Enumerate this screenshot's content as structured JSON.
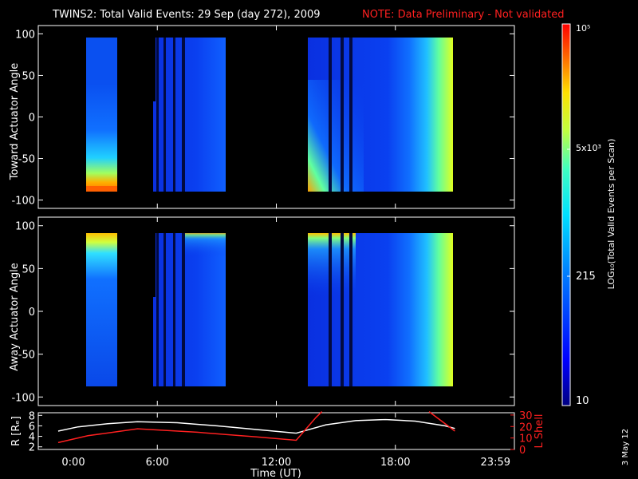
{
  "title": "TWINS2: Total Valid Events: 29 Sep (day 272), 2009",
  "note": "NOTE: Data Preliminary - Not validated",
  "date_stamp": "3 May 12",
  "colors": {
    "note": "#ff2020",
    "ephem_r": "#ffffff",
    "ephem_lshell": "#ff2020"
  },
  "chart_data": [
    {
      "type": "heatmap",
      "ylabel": "Toward Actuator Angle",
      "ylim": [
        -110,
        110
      ],
      "yticks": [
        "100",
        "50",
        "0",
        "-50",
        "-100"
      ],
      "x_range_hours": [
        0,
        24
      ]
    },
    {
      "type": "heatmap",
      "ylabel": "Away Actuator Angle",
      "ylim": [
        -110,
        110
      ],
      "yticks": [
        "100",
        "50",
        "0",
        "-50",
        "-100"
      ],
      "x_range_hours": [
        0,
        24
      ]
    },
    {
      "type": "line",
      "ylabel": "R [Rₑ]",
      "y2label": "L Shell",
      "xlabel": "Time (UT)",
      "xticks": [
        "0:00",
        "6:00",
        "12:00",
        "18:00",
        "23:59"
      ],
      "yticks": [
        "8",
        "6",
        "4",
        "2"
      ],
      "y2ticks": [
        "30",
        "20",
        "10",
        "0"
      ],
      "ylim": [
        1.5,
        8.5
      ],
      "y2lim": [
        0,
        32
      ],
      "series": [
        {
          "name": "R [Rₑ]",
          "x": [
            1.0,
            2.0,
            3.5,
            5.0,
            7.0,
            9.0,
            11.0,
            13.0,
            14.5,
            16.0,
            17.5,
            19.0,
            20.5,
            21.0
          ],
          "values": [
            5.0,
            5.8,
            6.4,
            6.8,
            6.6,
            6.0,
            5.3,
            4.6,
            6.2,
            7.0,
            7.2,
            6.9,
            6.0,
            5.5
          ]
        },
        {
          "name": "L Shell",
          "x": [
            1.0,
            2.5,
            5.0,
            8.0,
            11.0,
            13.0,
            14.0,
            14.3
          ],
          "values": [
            6,
            12,
            18,
            15,
            11,
            8,
            28,
            33
          ]
        },
        {
          "name": "L Shell",
          "x": [
            19.7,
            21.0
          ],
          "values": [
            33,
            16
          ]
        }
      ]
    }
  ],
  "colorbar": {
    "label": "LOG₁₀(Total Valid Events per Scan)",
    "ticks": [
      "10⁵",
      "5x10³",
      "215",
      "10"
    ],
    "range": [
      1,
      5
    ]
  }
}
